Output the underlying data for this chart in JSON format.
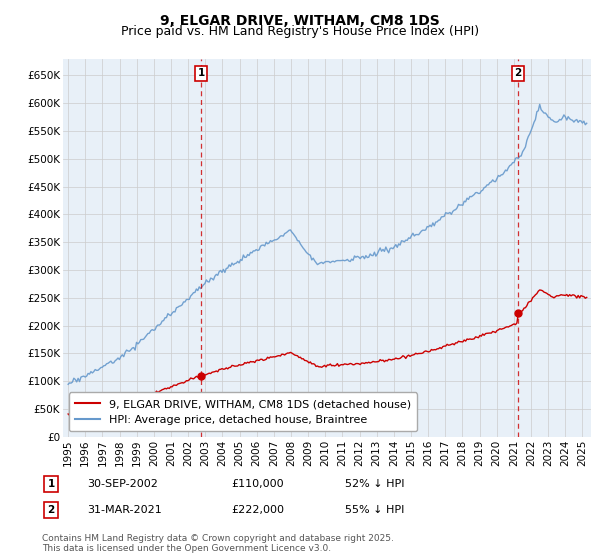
{
  "title": "9, ELGAR DRIVE, WITHAM, CM8 1DS",
  "subtitle": "Price paid vs. HM Land Registry's House Price Index (HPI)",
  "ylim": [
    0,
    680000
  ],
  "yticks": [
    0,
    50000,
    100000,
    150000,
    200000,
    250000,
    300000,
    350000,
    400000,
    450000,
    500000,
    550000,
    600000,
    650000
  ],
  "ytick_labels": [
    "£0",
    "£50K",
    "£100K",
    "£150K",
    "£200K",
    "£250K",
    "£300K",
    "£350K",
    "£400K",
    "£450K",
    "£500K",
    "£550K",
    "£600K",
    "£650K"
  ],
  "xlim_start": 1994.7,
  "xlim_end": 2025.5,
  "xticks": [
    1995,
    1996,
    1997,
    1998,
    1999,
    2000,
    2001,
    2002,
    2003,
    2004,
    2005,
    2006,
    2007,
    2008,
    2009,
    2010,
    2011,
    2012,
    2013,
    2014,
    2015,
    2016,
    2017,
    2018,
    2019,
    2020,
    2021,
    2022,
    2023,
    2024,
    2025
  ],
  "red_line_color": "#cc0000",
  "blue_line_color": "#6699cc",
  "plot_bg_color": "#e8f0f8",
  "marker1_date": 2002.75,
  "marker1_value_red": 110000,
  "marker1_label": "1",
  "marker2_date": 2021.25,
  "marker2_value_red": 222000,
  "marker2_label": "2",
  "vline_color": "#cc0000",
  "legend_red_label": "9, ELGAR DRIVE, WITHAM, CM8 1DS (detached house)",
  "legend_blue_label": "HPI: Average price, detached house, Braintree",
  "footer_text": "Contains HM Land Registry data © Crown copyright and database right 2025.\nThis data is licensed under the Open Government Licence v3.0.",
  "background_color": "#ffffff",
  "grid_color": "#cccccc",
  "title_fontsize": 10,
  "subtitle_fontsize": 9,
  "tick_fontsize": 7.5,
  "legend_fontsize": 8,
  "annotation_fontsize": 8,
  "footer_fontsize": 6.5
}
